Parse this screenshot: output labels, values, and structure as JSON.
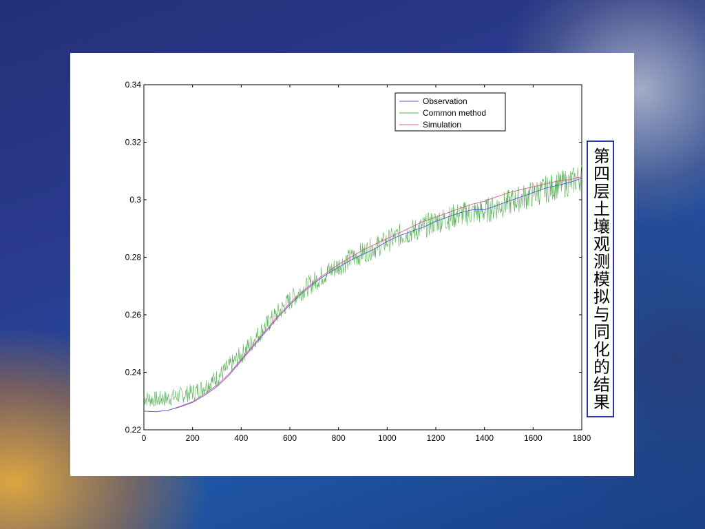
{
  "slide": {
    "side_title": "第四层土壤观测模拟与同化的结果"
  },
  "chart_data": {
    "type": "line",
    "title": "",
    "xlabel": "",
    "ylabel": "",
    "xlim": [
      0,
      1800
    ],
    "ylim": [
      0.22,
      0.34
    ],
    "xticks": [
      0,
      200,
      400,
      600,
      800,
      1000,
      1200,
      1400,
      1600,
      1800
    ],
    "yticks": [
      0.22,
      0.24,
      0.26,
      0.28,
      0.3,
      0.32,
      0.34
    ],
    "xtick_labels": [
      "0",
      "200",
      "400",
      "600",
      "800",
      "1000",
      "1200",
      "1400",
      "1600",
      "1800"
    ],
    "ytick_labels": [
      "0.22",
      "0.24",
      "0.26",
      "0.28",
      "0.3",
      "0.32",
      "0.34"
    ],
    "grid": false,
    "legend_position": "top-right",
    "series": [
      {
        "name": "Observation",
        "color": "#5b5bd6",
        "x": [
          0,
          50,
          100,
          150,
          200,
          250,
          300,
          350,
          400,
          450,
          500,
          550,
          600,
          650,
          700,
          750,
          800,
          850,
          900,
          950,
          1000,
          1050,
          1100,
          1150,
          1200,
          1250,
          1300,
          1350,
          1400,
          1450,
          1500,
          1550,
          1600,
          1650,
          1700,
          1750,
          1800
        ],
        "y": [
          0.2265,
          0.2263,
          0.2268,
          0.228,
          0.2295,
          0.232,
          0.235,
          0.239,
          0.244,
          0.249,
          0.254,
          0.259,
          0.2635,
          0.2675,
          0.271,
          0.274,
          0.2765,
          0.279,
          0.281,
          0.283,
          0.2855,
          0.2875,
          0.289,
          0.2905,
          0.2925,
          0.294,
          0.2955,
          0.2965,
          0.2965,
          0.298,
          0.2995,
          0.301,
          0.3025,
          0.304,
          0.305,
          0.306,
          0.3075
        ]
      },
      {
        "name": "Common method",
        "color": "#4fb04f",
        "x": [
          0,
          50,
          100,
          150,
          200,
          250,
          300,
          350,
          400,
          450,
          500,
          550,
          600,
          650,
          700,
          750,
          800,
          850,
          900,
          950,
          1000,
          1050,
          1100,
          1150,
          1200,
          1250,
          1300,
          1350,
          1400,
          1450,
          1500,
          1550,
          1600,
          1650,
          1700,
          1750,
          1800
        ],
        "y": [
          0.231,
          0.2305,
          0.231,
          0.232,
          0.233,
          0.235,
          0.238,
          0.242,
          0.246,
          0.251,
          0.256,
          0.2605,
          0.265,
          0.2685,
          0.2715,
          0.2745,
          0.277,
          0.2795,
          0.2815,
          0.2835,
          0.2855,
          0.2875,
          0.289,
          0.2905,
          0.2925,
          0.2935,
          0.295,
          0.2955,
          0.296,
          0.2975,
          0.299,
          0.3005,
          0.302,
          0.3035,
          0.305,
          0.306,
          0.308
        ]
      },
      {
        "name": "Simulation",
        "color": "#e05c8a",
        "x": [
          0,
          50,
          100,
          150,
          200,
          250,
          300,
          350,
          400,
          450,
          500,
          550,
          600,
          650,
          700,
          750,
          800,
          850,
          900,
          950,
          1000,
          1050,
          1100,
          1150,
          1200,
          1250,
          1300,
          1350,
          1400,
          1450,
          1500,
          1550,
          1600,
          1650,
          1700,
          1750,
          1800
        ],
        "y": [
          0.2265,
          0.2263,
          0.2268,
          0.2282,
          0.2298,
          0.2325,
          0.2355,
          0.2395,
          0.2445,
          0.2495,
          0.2545,
          0.2595,
          0.264,
          0.268,
          0.2715,
          0.2745,
          0.2775,
          0.28,
          0.2825,
          0.2845,
          0.2865,
          0.2885,
          0.2905,
          0.2925,
          0.294,
          0.2955,
          0.297,
          0.2985,
          0.2995,
          0.301,
          0.3025,
          0.3035,
          0.3045,
          0.3055,
          0.3065,
          0.307,
          0.308
        ]
      }
    ]
  }
}
